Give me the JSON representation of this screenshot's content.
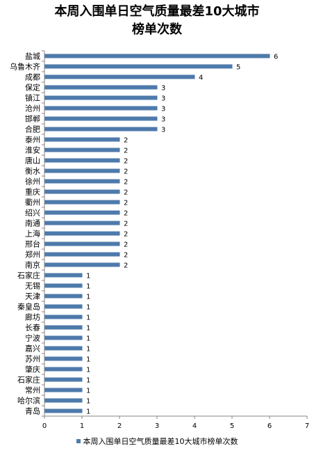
{
  "chart_data": {
    "type": "bar",
    "orientation": "horizontal",
    "title_lines": [
      "本周入围单日空气质量最差10大城市",
      "榜单次数"
    ],
    "categories": [
      "盐城",
      "乌鲁木齐",
      "成都",
      "保定",
      "镇江",
      "沧州",
      "邯郸",
      "合肥",
      "泰州",
      "淮安",
      "唐山",
      "衡水",
      "徐州",
      "重庆",
      "衢州",
      "绍兴",
      "南通",
      "上海",
      "邢台",
      "郑州",
      "南京",
      "石家庄",
      "无锡",
      "天津",
      "秦皇岛",
      "廊坊",
      "长春",
      "宁波",
      "嘉兴",
      "苏州",
      "肇庆",
      "石家庄",
      "常州",
      "哈尔滨",
      "青岛"
    ],
    "series": [
      {
        "name": "本周入围单日空气质量最差10大城市榜单次数",
        "values": [
          6,
          5,
          4,
          3,
          3,
          3,
          3,
          3,
          2,
          2,
          2,
          2,
          2,
          2,
          2,
          2,
          2,
          2,
          2,
          2,
          2,
          1,
          1,
          1,
          1,
          1,
          1,
          1,
          1,
          1,
          1,
          1,
          1,
          1,
          1
        ],
        "color": "#4e7aab"
      }
    ],
    "xlim": [
      0,
      7
    ],
    "x_ticks": [
      "0",
      "1",
      "2",
      "3",
      "4",
      "5",
      "6",
      "7"
    ],
    "grid": false,
    "legend_position": "bottom",
    "data_labels": true
  }
}
